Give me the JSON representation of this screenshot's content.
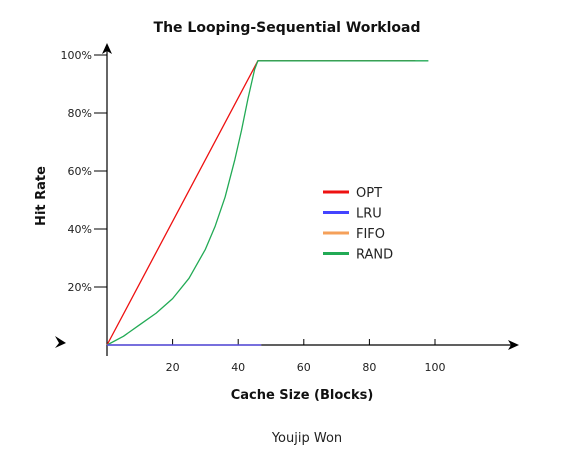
{
  "chart_data": {
    "type": "line",
    "title": "The Looping-Sequential Workload",
    "xlabel": "Cache Size (Blocks)",
    "ylabel": "Hit Rate",
    "xlim": [
      0,
      125
    ],
    "ylim": [
      0,
      100
    ],
    "x_ticks": [
      20,
      40,
      60,
      80,
      100
    ],
    "x_tick_labels": [
      "20",
      "40",
      "60",
      "80",
      "100"
    ],
    "y_ticks": [
      20,
      40,
      60,
      80,
      100
    ],
    "y_tick_labels": [
      "20%",
      "40%",
      "60%",
      "80%",
      "100%"
    ],
    "grid": false,
    "legend_position": "center-right",
    "series": [
      {
        "name": "OPT",
        "color": "#ee1111",
        "x": [
          0,
          46,
          94
        ],
        "y": [
          0,
          98,
          98
        ]
      },
      {
        "name": "LRU",
        "color": "#4444ff",
        "x": [
          0,
          47
        ],
        "y": [
          0,
          0
        ]
      },
      {
        "name": "FIFO",
        "color": "#f5a05a",
        "x": [
          0,
          47
        ],
        "y": [
          0,
          0
        ]
      },
      {
        "name": "RAND",
        "color": "#22aa55",
        "x": [
          0,
          5,
          10,
          15,
          20,
          25,
          30,
          33,
          36,
          39,
          41,
          43,
          45,
          46,
          50,
          60,
          70,
          80,
          90,
          98
        ],
        "y": [
          0,
          3,
          7,
          11,
          16,
          23,
          33,
          41,
          51,
          64,
          74,
          85,
          95,
          98,
          98,
          98,
          98,
          98,
          98,
          98
        ]
      }
    ],
    "author": "Youjip Won"
  }
}
